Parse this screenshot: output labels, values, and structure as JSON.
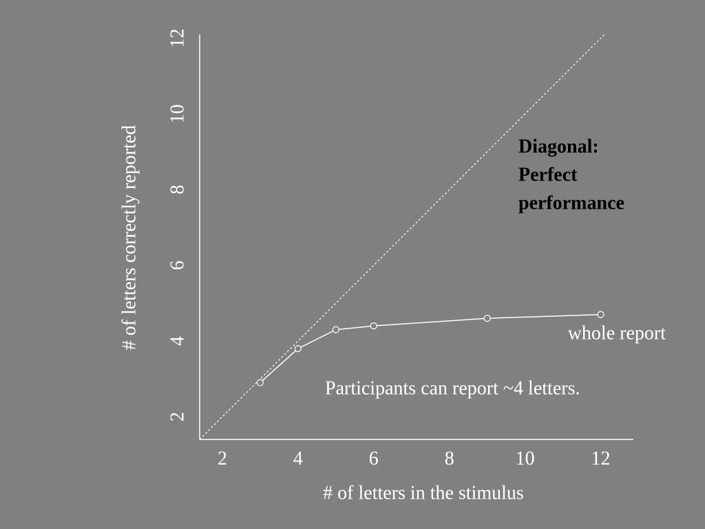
{
  "chart_data": {
    "type": "line",
    "x_label": "# of letters in the stimulus",
    "y_label": "# of letters correctly reported",
    "x": [
      3,
      4,
      5,
      6,
      9,
      12
    ],
    "series": [
      {
        "name": "whole report",
        "color": "#ffffff",
        "values": [
          2.9,
          3.8,
          4.3,
          4.4,
          4.6,
          4.7
        ]
      }
    ],
    "xlim": [
      1.4,
      12.9
    ],
    "xticks": [
      2,
      4,
      6,
      8,
      10,
      12
    ],
    "ylim": [
      1.4,
      12.1
    ],
    "yticks": [
      2,
      4,
      6,
      8,
      10,
      12
    ],
    "diagonal": true,
    "annotations": [
      "Diagonal:",
      "Perfect",
      "performance",
      "Participants can report ~4 letters."
    ]
  }
}
